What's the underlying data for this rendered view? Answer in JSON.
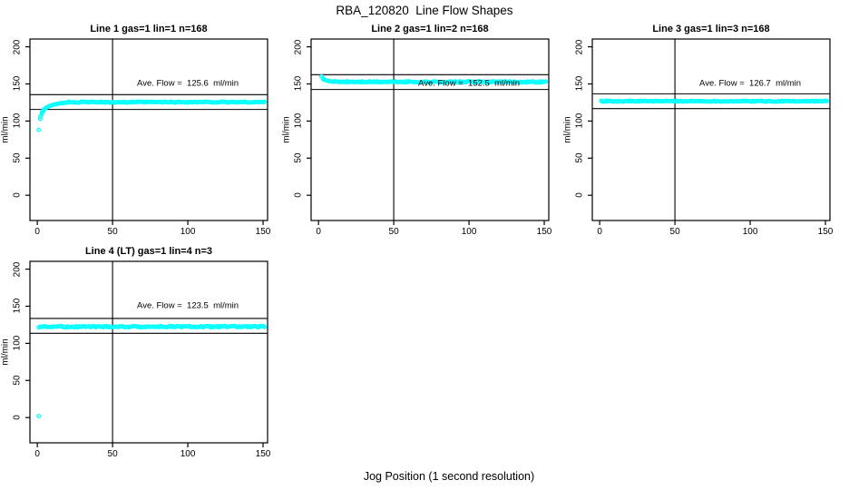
{
  "figure": {
    "title": "RBA_120820  Line Flow Shapes",
    "xlabel": "Jog Position (1 second resolution)",
    "background": "#ffffff",
    "point_color": "#00ffff",
    "line_color": "#000000"
  },
  "chart_data": [
    {
      "type": "scatter",
      "title": "Line 1 gas=1 lin=1 n=168",
      "ylabel": "ml/min",
      "annotation": "Ave. Flow =  125.6  ml/min",
      "ave_flow": 125.6,
      "xlim": [
        -4.9,
        153
      ],
      "ylim": [
        -34,
        210.5
      ],
      "xticks": [
        0,
        50,
        100,
        150
      ],
      "yticks": [
        0,
        50,
        100,
        150,
        200
      ],
      "vline_x": 50,
      "hlines": [
        115.6,
        135.6
      ],
      "annotation_xy": [
        100,
        150
      ],
      "points": [
        [
          1,
          88
        ],
        [
          2,
          103
        ],
        [
          2,
          106
        ],
        [
          3,
          109
        ],
        [
          3,
          111.5
        ],
        [
          4,
          113.5
        ],
        [
          4,
          115
        ],
        [
          5,
          116.5
        ],
        [
          6,
          118
        ],
        [
          7,
          119
        ],
        [
          8,
          120
        ],
        [
          9,
          120.8
        ],
        [
          10,
          121.5
        ],
        [
          11,
          122.1
        ],
        [
          12,
          122.6
        ],
        [
          13,
          123
        ],
        [
          14,
          123.4
        ],
        [
          15,
          123.7
        ],
        [
          16,
          124
        ],
        [
          17,
          124.3
        ],
        [
          18,
          124.5
        ],
        [
          19,
          124.7
        ],
        [
          20,
          124.9
        ]
      ],
      "flat": {
        "from": 21,
        "to": 151,
        "value": 125.4,
        "noise": 0.7
      }
    },
    {
      "type": "scatter",
      "title": "Line 2 gas=1 lin=2 n=168",
      "ylabel": "ml/min",
      "annotation": "Ave. Flow =  152.5  ml/min",
      "ave_flow": 152.5,
      "xlim": [
        -4.9,
        153
      ],
      "ylim": [
        -34,
        210.5
      ],
      "xticks": [
        0,
        50,
        100,
        150
      ],
      "yticks": [
        0,
        50,
        100,
        150,
        200
      ],
      "vline_x": 50,
      "hlines": [
        142.5,
        162.5
      ],
      "annotation_xy": [
        100,
        150
      ],
      "points": [
        [
          2,
          160
        ],
        [
          3,
          157.5
        ],
        [
          3,
          156.5
        ],
        [
          4,
          155.5
        ],
        [
          5,
          154.8
        ],
        [
          6,
          154.2
        ],
        [
          7,
          153.8
        ],
        [
          8,
          153.4
        ],
        [
          9,
          153.1
        ],
        [
          10,
          152.9
        ]
      ],
      "flat": {
        "from": 11,
        "to": 151,
        "value": 152.7,
        "noise": 0.9
      }
    },
    {
      "type": "scatter",
      "title": "Line 3 gas=1 lin=3 n=168",
      "ylabel": "ml/min",
      "annotation": "Ave. Flow =  126.7  ml/min",
      "ave_flow": 126.7,
      "xlim": [
        -4.9,
        153
      ],
      "ylim": [
        -34,
        210.5
      ],
      "xticks": [
        0,
        50,
        100,
        150
      ],
      "yticks": [
        0,
        50,
        100,
        150,
        200
      ],
      "vline_x": 50,
      "hlines": [
        116.7,
        136.7
      ],
      "annotation_xy": [
        100,
        150
      ],
      "points": [],
      "flat": {
        "from": 1,
        "to": 151,
        "value": 126.7,
        "noise": 0.7
      }
    },
    {
      "type": "scatter",
      "title": "Line 4 (LT) gas=1 lin=4 n=3",
      "ylabel": "ml/min",
      "annotation": "Ave. Flow =  123.5  ml/min",
      "ave_flow": 123.5,
      "xlim": [
        -4.9,
        153
      ],
      "ylim": [
        -34,
        210.5
      ],
      "xticks": [
        0,
        50,
        100,
        150
      ],
      "yticks": [
        0,
        50,
        100,
        150,
        200
      ],
      "vline_x": 50,
      "hlines": [
        113.5,
        133.5
      ],
      "annotation_xy": [
        100,
        150
      ],
      "points": [
        [
          1,
          2
        ]
      ],
      "flat": {
        "from": 1,
        "to": 151,
        "value": 122.4,
        "noise": 1.0
      }
    }
  ]
}
